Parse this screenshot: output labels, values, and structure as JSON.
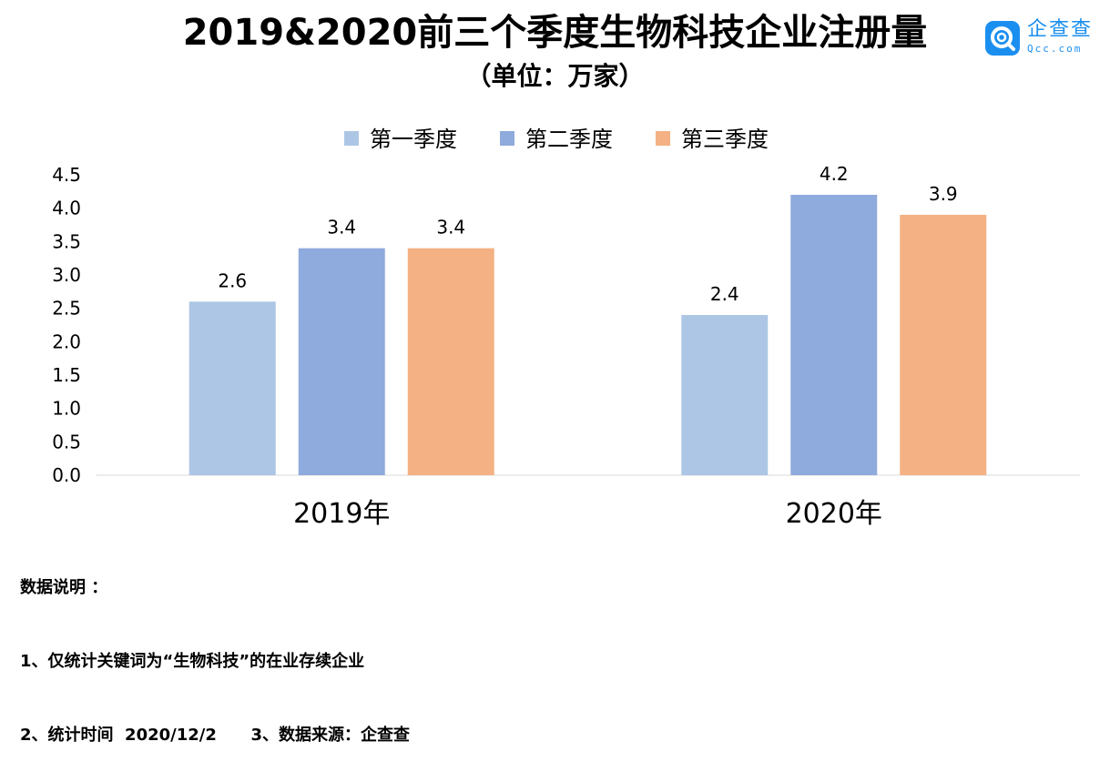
{
  "logo": {
    "text": "企查查",
    "sub": "Qcc.com",
    "color": "#1b8ff0"
  },
  "chart_data": {
    "type": "bar",
    "title": "2019&2020前三个季度生物科技企业注册量",
    "subtitle": "（单位：万家）",
    "categories": [
      "2019年",
      "2020年"
    ],
    "series": [
      {
        "name": "第一季度",
        "values": [
          2.6,
          2.4
        ],
        "color": "#adc6e5"
      },
      {
        "name": "第二季度",
        "values": [
          3.4,
          4.2
        ],
        "color": "#8faadc"
      },
      {
        "name": "第三季度",
        "values": [
          3.4,
          3.9
        ],
        "color": "#f4b183"
      }
    ],
    "ylim": [
      0,
      4.5
    ],
    "yticks": [
      "0.0",
      "0.5",
      "1.0",
      "1.5",
      "2.0",
      "2.5",
      "3.0",
      "3.5",
      "4.0",
      "4.5"
    ],
    "grid": false,
    "legend": "top-center",
    "data_labels": true
  },
  "notes": {
    "line1": "数据说明 ：",
    "line2": "1、仅统计关键词为“生物科技”的在业存续企业",
    "line3": "2、统计时间  2020/12/2      3、数据来源：企查查"
  }
}
